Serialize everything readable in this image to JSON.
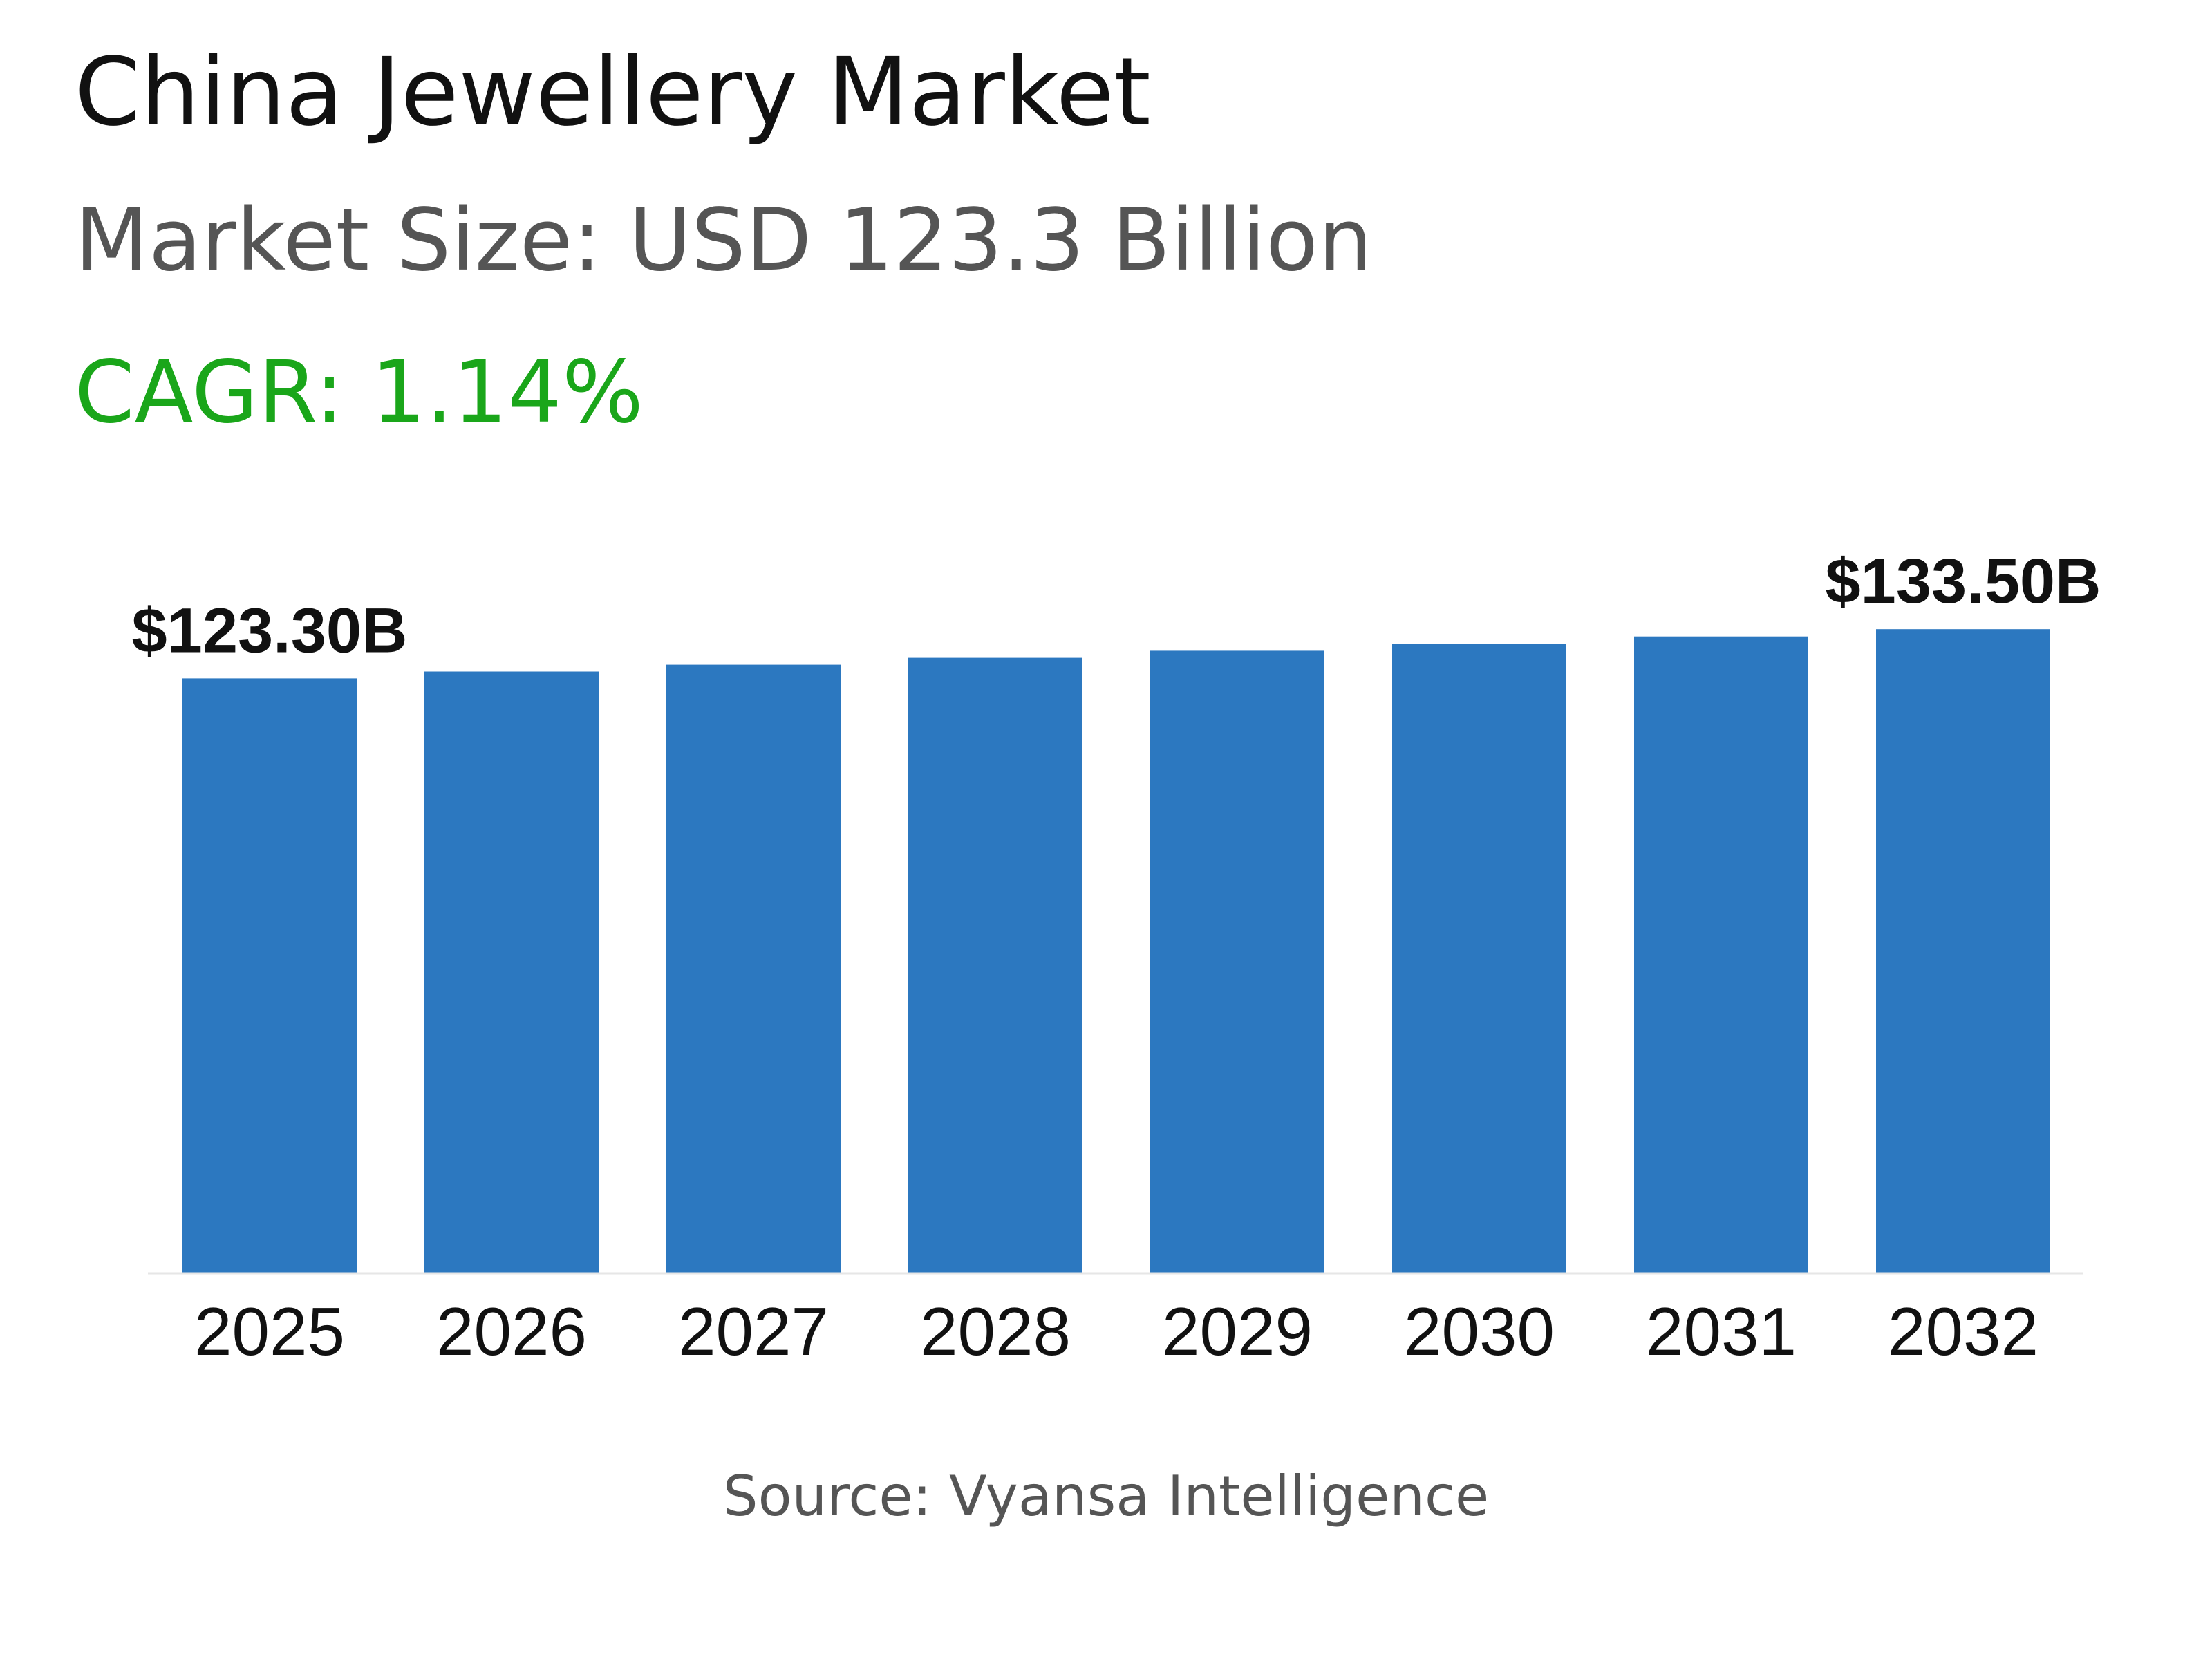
{
  "header": {
    "title": "China Jewellery Market",
    "market_size": "Market Size: USD 123.3 Billion",
    "cagr": "CAGR: 1.14%"
  },
  "footer": {
    "source": "Source: Vyansa Intelligence"
  },
  "colors": {
    "bar": "#2c78c0",
    "cagr": "#1aa61a",
    "axis": "#e6e6e6"
  },
  "chart_data": {
    "type": "bar",
    "categories": [
      "2025",
      "2026",
      "2027",
      "2028",
      "2029",
      "2030",
      "2031",
      "2032"
    ],
    "values": [
      123.3,
      124.71,
      126.13,
      127.57,
      129.03,
      130.5,
      131.99,
      133.5
    ],
    "data_labels": [
      {
        "index": 0,
        "text": "$123.30B"
      },
      {
        "index": 7,
        "text": "$133.50B"
      }
    ],
    "ylim": [
      0,
      150
    ],
    "grid": false,
    "legend": "none"
  }
}
